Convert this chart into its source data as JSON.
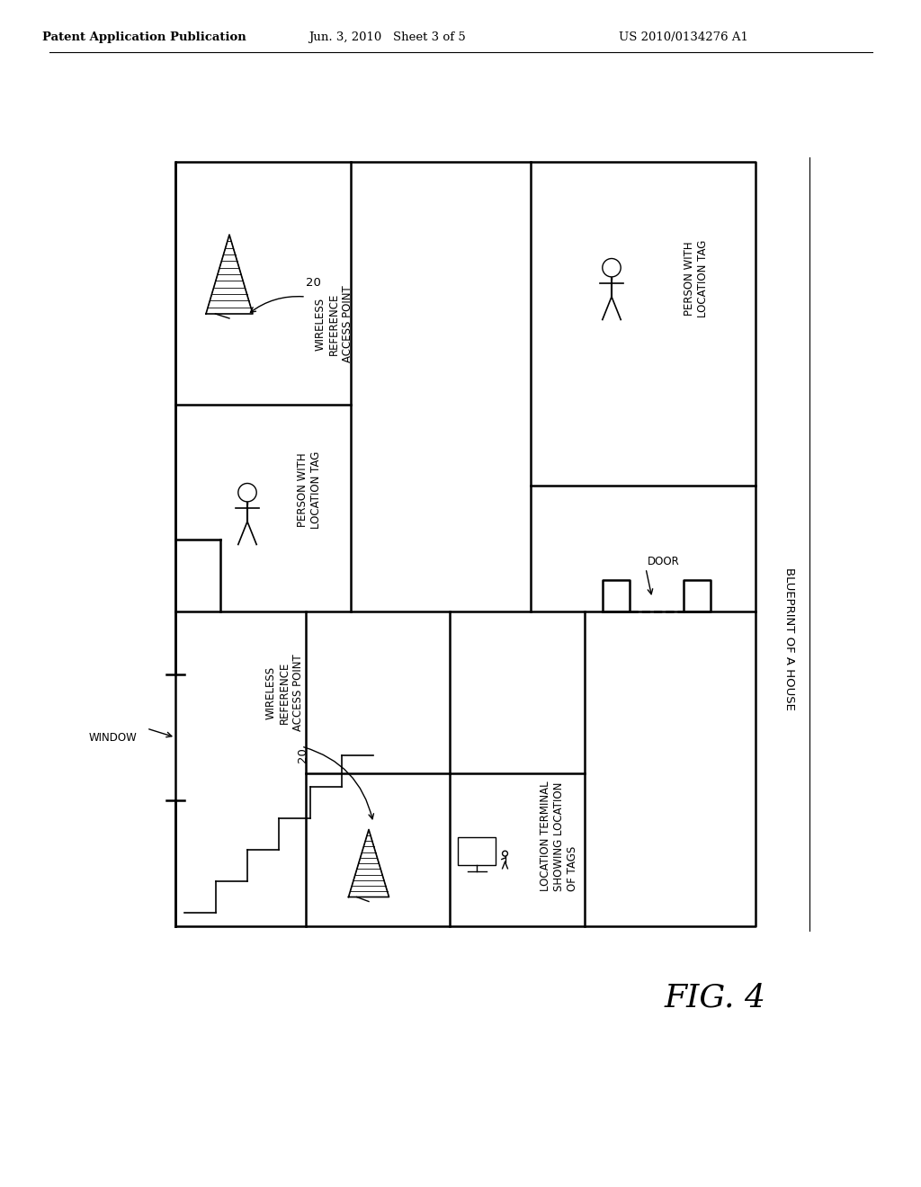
{
  "title_left": "Patent Application Publication",
  "title_center": "Jun. 3, 2010   Sheet 3 of 5",
  "title_right": "US 2010/0134276 A1",
  "fig_label": "FIG. 4",
  "blueprint_label": "BLUEPRINT OF A HOUSE",
  "background_color": "#ffffff",
  "line_color": "#000000",
  "fig_fontsize": 26,
  "label_fontsize": 8.5,
  "header_fontsize": 9.5
}
